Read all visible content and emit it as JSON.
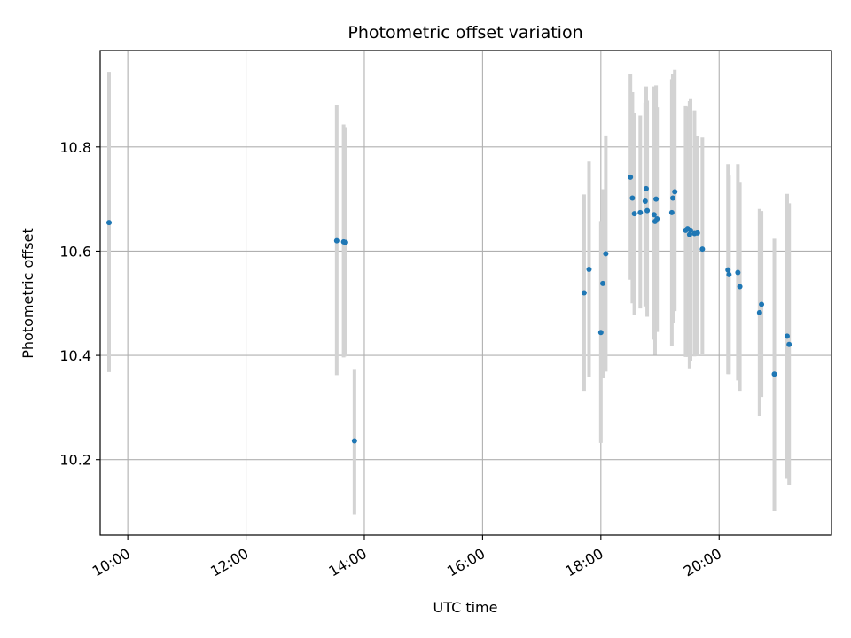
{
  "chart_data": {
    "type": "scatter",
    "title": "Photometric offset variation",
    "xlabel": "UTC time",
    "ylabel": "Photometric offset",
    "xlim": [
      "09:32",
      "21:54"
    ],
    "ylim": [
      10.055,
      10.985
    ],
    "x_ticks": [
      "10:00",
      "12:00",
      "14:00",
      "16:00",
      "18:00",
      "20:00"
    ],
    "y_ticks": [
      10.2,
      10.4,
      10.6,
      10.8
    ],
    "y_tick_labels": [
      "10.2",
      "10.4",
      "10.6",
      "10.8"
    ],
    "grid": true,
    "error_bars": true,
    "colors": {
      "points": "#1f77b4",
      "error_bars": "#d3d3d3",
      "grid": "#b0b0b0"
    },
    "series": [
      {
        "points": [
          {
            "x": "09:41",
            "y": 10.655,
            "ylow": 10.368,
            "yhigh": 10.944
          },
          {
            "x": "13:32",
            "y": 10.62,
            "ylow": 10.362,
            "yhigh": 10.88
          },
          {
            "x": "13:39",
            "y": 10.618,
            "ylow": 10.396,
            "yhigh": 10.843
          },
          {
            "x": "13:41",
            "y": 10.617,
            "ylow": 10.398,
            "yhigh": 10.838
          },
          {
            "x": "13:50",
            "y": 10.236,
            "ylow": 10.095,
            "yhigh": 10.374
          },
          {
            "x": "17:43",
            "y": 10.52,
            "ylow": 10.332,
            "yhigh": 10.709
          },
          {
            "x": "17:48",
            "y": 10.565,
            "ylow": 10.358,
            "yhigh": 10.772
          },
          {
            "x": "18:00",
            "y": 10.444,
            "ylow": 10.232,
            "yhigh": 10.658
          },
          {
            "x": "18:02",
            "y": 10.538,
            "ylow": 10.356,
            "yhigh": 10.719
          },
          {
            "x": "18:05",
            "y": 10.595,
            "ylow": 10.369,
            "yhigh": 10.822
          },
          {
            "x": "18:30",
            "y": 10.742,
            "ylow": 10.545,
            "yhigh": 10.939
          },
          {
            "x": "18:32",
            "y": 10.702,
            "ylow": 10.5,
            "yhigh": 10.905
          },
          {
            "x": "18:34",
            "y": 10.672,
            "ylow": 10.478,
            "yhigh": 10.866
          },
          {
            "x": "18:40",
            "y": 10.674,
            "ylow": 10.49,
            "yhigh": 10.86
          },
          {
            "x": "18:45",
            "y": 10.696,
            "ylow": 10.494,
            "yhigh": 10.885
          },
          {
            "x": "18:46",
            "y": 10.72,
            "ylow": 10.52,
            "yhigh": 10.916
          },
          {
            "x": "18:47",
            "y": 10.678,
            "ylow": 10.474,
            "yhigh": 10.889
          },
          {
            "x": "18:54",
            "y": 10.67,
            "ylow": 10.43,
            "yhigh": 10.916
          },
          {
            "x": "18:55",
            "y": 10.657,
            "ylow": 10.401,
            "yhigh": 10.913
          },
          {
            "x": "18:56",
            "y": 10.7,
            "ylow": 10.485,
            "yhigh": 10.918
          },
          {
            "x": "18:57",
            "y": 10.662,
            "ylow": 10.445,
            "yhigh": 10.876
          },
          {
            "x": "19:12",
            "y": 10.674,
            "ylow": 10.418,
            "yhigh": 10.93
          },
          {
            "x": "19:13",
            "y": 10.702,
            "ylow": 10.463,
            "yhigh": 10.94
          },
          {
            "x": "19:15",
            "y": 10.714,
            "ylow": 10.485,
            "yhigh": 10.948
          },
          {
            "x": "19:26",
            "y": 10.64,
            "ylow": 10.397,
            "yhigh": 10.878
          },
          {
            "x": "19:28",
            "y": 10.643,
            "ylow": 10.397,
            "yhigh": 10.877
          },
          {
            "x": "19:30",
            "y": 10.632,
            "ylow": 10.375,
            "yhigh": 10.888
          },
          {
            "x": "19:31",
            "y": 10.64,
            "ylow": 10.39,
            "yhigh": 10.892
          },
          {
            "x": "19:35",
            "y": 10.634,
            "ylow": 10.398,
            "yhigh": 10.87
          },
          {
            "x": "19:38",
            "y": 10.635,
            "ylow": 10.4,
            "yhigh": 10.82
          },
          {
            "x": "19:43",
            "y": 10.604,
            "ylow": 10.402,
            "yhigh": 10.818
          },
          {
            "x": "20:09",
            "y": 10.564,
            "ylow": 10.364,
            "yhigh": 10.767
          },
          {
            "x": "20:10",
            "y": 10.555,
            "ylow": 10.364,
            "yhigh": 10.745
          },
          {
            "x": "20:19",
            "y": 10.559,
            "ylow": 10.352,
            "yhigh": 10.767
          },
          {
            "x": "20:21",
            "y": 10.532,
            "ylow": 10.332,
            "yhigh": 10.733
          },
          {
            "x": "20:41",
            "y": 10.482,
            "ylow": 10.283,
            "yhigh": 10.681
          },
          {
            "x": "20:43",
            "y": 10.498,
            "ylow": 10.32,
            "yhigh": 10.677
          },
          {
            "x": "20:56",
            "y": 10.364,
            "ylow": 10.101,
            "yhigh": 10.624
          },
          {
            "x": "21:09",
            "y": 10.437,
            "ylow": 10.163,
            "yhigh": 10.71
          },
          {
            "x": "21:11",
            "y": 10.421,
            "ylow": 10.152,
            "yhigh": 10.692
          }
        ]
      }
    ]
  }
}
